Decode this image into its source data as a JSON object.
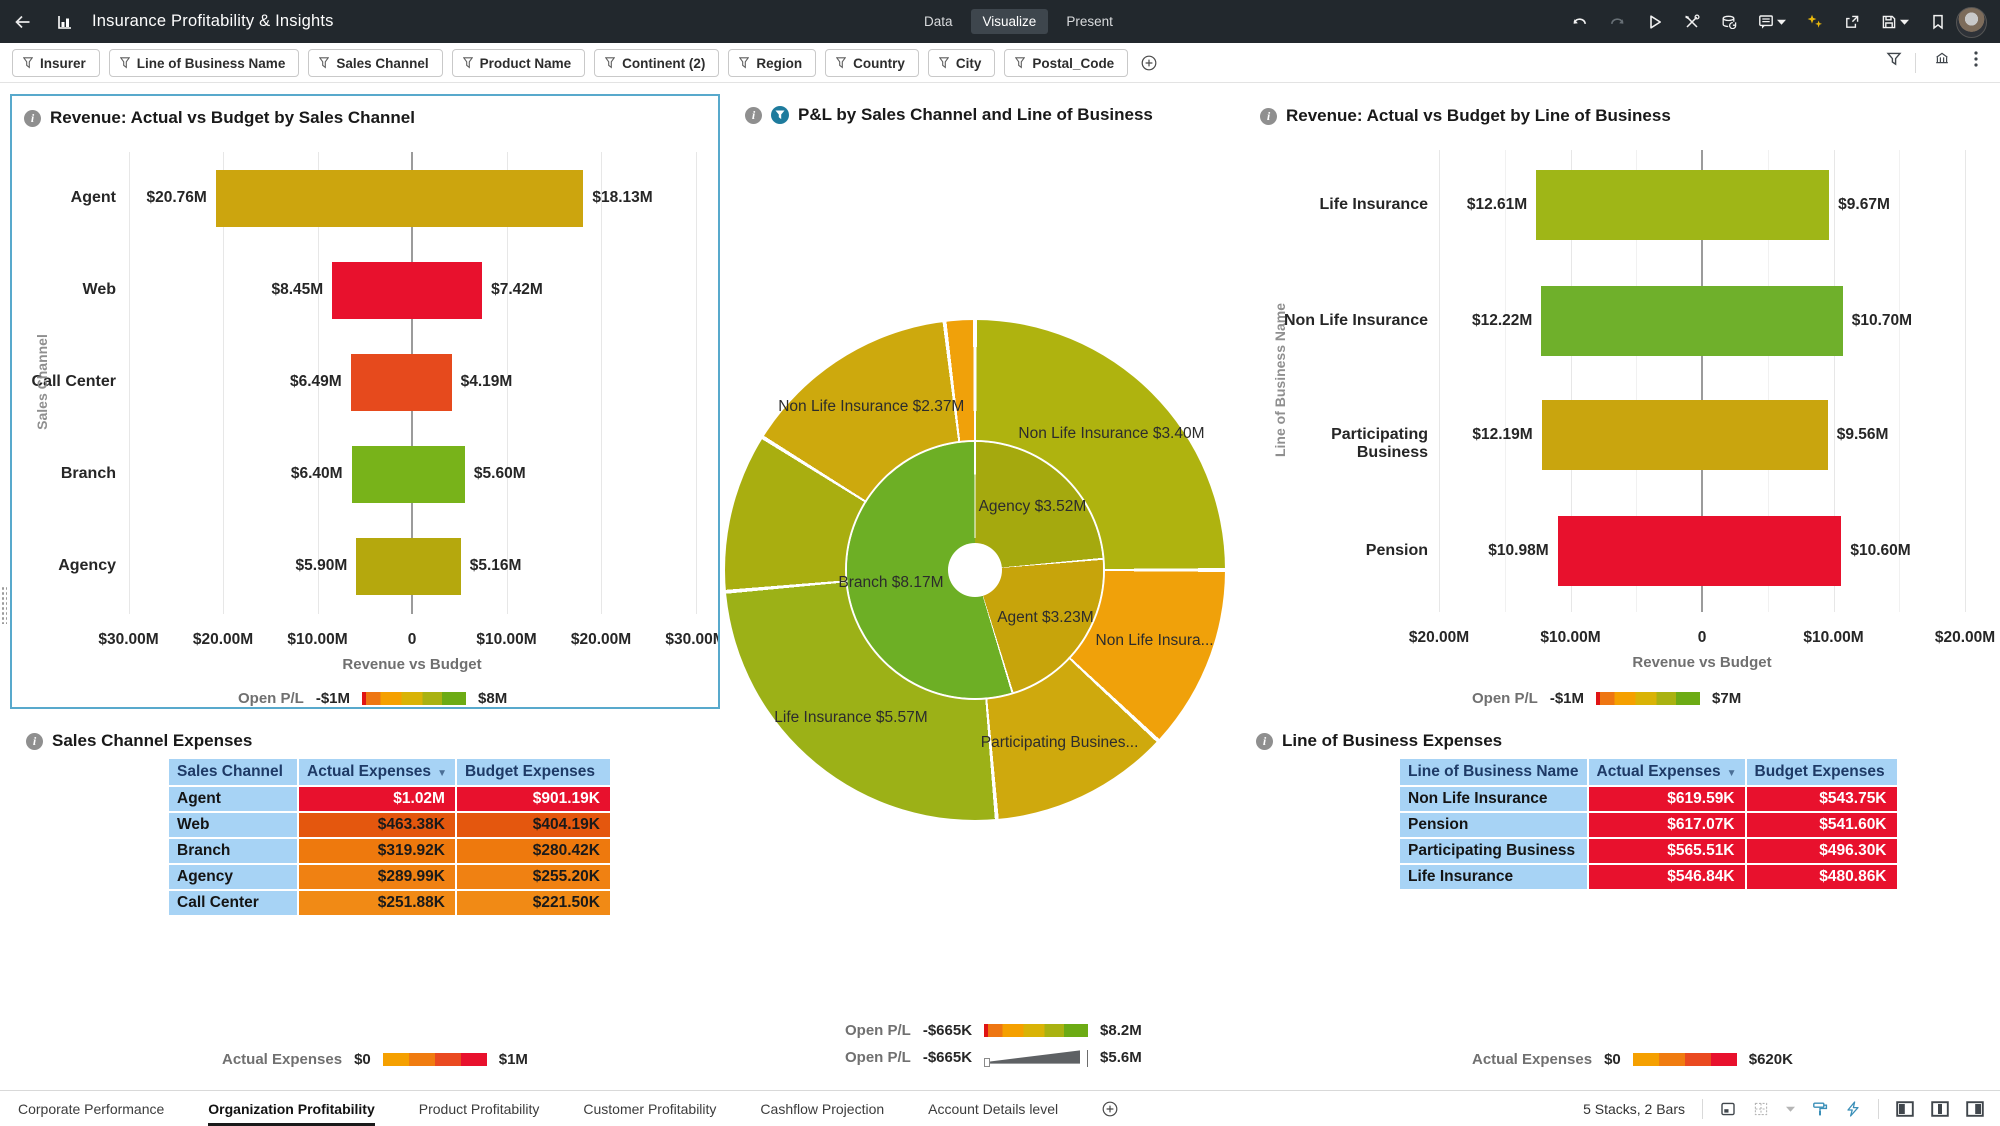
{
  "header": {
    "title": "Insurance Profitability & Insights",
    "tabs": [
      {
        "label": "Data",
        "active": false
      },
      {
        "label": "Visualize",
        "active": true
      },
      {
        "label": "Present",
        "active": false
      }
    ],
    "toolbar": [
      {
        "name": "undo-icon",
        "glyph": "undo"
      },
      {
        "name": "redo-icon",
        "glyph": "redo",
        "dim": true
      },
      {
        "name": "present-play-icon",
        "glyph": "play"
      },
      {
        "name": "tools-icon",
        "glyph": "tools"
      },
      {
        "name": "data-refresh-icon",
        "glyph": "database"
      },
      {
        "name": "notes-icon",
        "glyph": "notes",
        "caret": true
      },
      {
        "name": "auto-insights-icon",
        "glyph": "sparkle",
        "gold": true
      },
      {
        "name": "share-icon",
        "glyph": "share"
      },
      {
        "name": "save-icon",
        "glyph": "save",
        "caret": true
      },
      {
        "name": "bookmark-icon",
        "glyph": "bookmark"
      }
    ]
  },
  "filter_bar": {
    "chips": [
      "Insurer",
      "Line of Business Name",
      "Sales Channel",
      "Product Name",
      "Continent (2)",
      "Region",
      "Country",
      "City",
      "Postal_Code"
    ],
    "right_icons": [
      "filter-funnel-icon",
      "viz-settings-icon",
      "kebab-menu-icon"
    ]
  },
  "chart_data": [
    {
      "id": "revenue_by_sales_channel",
      "type": "bar",
      "subtype": "diverging-butterfly",
      "title": "Revenue: Actual vs Budget by Sales Channel",
      "ylabel": "Sales Channel",
      "xlabel": "Revenue vs Budget",
      "axis": {
        "max_millions": 30,
        "step_millions": 10,
        "tick_labels": [
          "$30.00M",
          "$20.00M",
          "$10.00M",
          "0",
          "$10.00M",
          "$20.00M",
          "$30.00M"
        ]
      },
      "series": [
        "Actual (left)",
        "Budget (right)"
      ],
      "categories": [
        {
          "label": "Agent",
          "actual_m": 20.76,
          "budget_m": 18.13,
          "actual_label": "$20.76M",
          "budget_label": "$18.13M",
          "color": "#CCA50E"
        },
        {
          "label": "Web",
          "actual_m": 8.45,
          "budget_m": 7.42,
          "actual_label": "$8.45M",
          "budget_label": "$7.42M",
          "color": "#E8112D"
        },
        {
          "label": "Call Center",
          "actual_m": 6.49,
          "budget_m": 4.19,
          "actual_label": "$6.49M",
          "budget_label": "$4.19M",
          "color": "#E64A1D"
        },
        {
          "label": "Branch",
          "actual_m": 6.4,
          "budget_m": 5.6,
          "actual_label": "$6.40M",
          "budget_label": "$5.60M",
          "color": "#78B31A"
        },
        {
          "label": "Agency",
          "actual_m": 5.9,
          "budget_m": 5.16,
          "actual_label": "$5.90M",
          "budget_label": "$5.16M",
          "color": "#B5A80D"
        }
      ],
      "legend": {
        "label": "Open P/L",
        "min": "-$1M",
        "max": "$8M",
        "type": "gradient"
      }
    },
    {
      "id": "pnl_by_sales_channel_and_lob",
      "type": "pie",
      "subtype": "sunburst",
      "title": "P&L by Sales Channel and Line of Business",
      "inner_ring": [
        {
          "label": "Agency $3.52M",
          "value_m": 3.52,
          "start_deg": 0,
          "end_deg": 85,
          "color": "#A5A90E"
        },
        {
          "label": "Agent $3.23M",
          "value_m": 3.23,
          "start_deg": 85,
          "end_deg": 163,
          "color": "#C7A40B"
        },
        {
          "label": "Branch $8.17M",
          "value_m": 8.17,
          "start_deg": 163,
          "end_deg": 360,
          "color": "#6DAF25"
        }
      ],
      "outer_ring": [
        {
          "label": "Non Life Insurance $3.40M",
          "value_m": 3.4,
          "start_deg": 0,
          "end_deg": 90,
          "color": "#AFB30F"
        },
        {
          "label": "Non Life Insura...",
          "start_deg": 90,
          "end_deg": 133,
          "color": "#F0A10A"
        },
        {
          "label": "Participating Busines...",
          "start_deg": 133,
          "end_deg": 175,
          "color": "#CFA90D"
        },
        {
          "label": "Life Insurance $5.57M",
          "value_m": 5.57,
          "start_deg": 175,
          "end_deg": 265,
          "color": "#9CB117"
        },
        {
          "label": "",
          "start_deg": 265,
          "end_deg": 302,
          "color": "#A9AE10"
        },
        {
          "label": "Non Life Insurance $2.37M",
          "value_m": 2.37,
          "start_deg": 302,
          "end_deg": 353,
          "color": "#CDA90D"
        },
        {
          "label": "",
          "start_deg": 353,
          "end_deg": 360,
          "color": "#F0A10A"
        }
      ],
      "legends": [
        {
          "label": "Open P/L",
          "min": "-$665K",
          "max": "$8.2M",
          "type": "gradient"
        },
        {
          "label": "Open P/L",
          "min": "-$665K",
          "max": "$5.6M",
          "type": "size"
        }
      ]
    },
    {
      "id": "revenue_by_line_of_business",
      "type": "bar",
      "subtype": "diverging-butterfly",
      "title": "Revenue: Actual vs Budget by Line of Business",
      "ylabel": "Line of Business Name",
      "xlabel": "Revenue vs Budget",
      "axis": {
        "max_millions": 20,
        "step_millions": 10,
        "tick_labels": [
          "$20.00M",
          "$10.00M",
          "0",
          "$10.00M",
          "$20.00M"
        ]
      },
      "series": [
        "Actual (left)",
        "Budget (right)"
      ],
      "categories": [
        {
          "label": "Life Insurance",
          "actual_m": 12.61,
          "budget_m": 9.67,
          "actual_label": "$12.61M",
          "budget_label": "$9.67M",
          "color": "#9FB617"
        },
        {
          "label": "Non Life Insurance",
          "actual_m": 12.22,
          "budget_m": 10.7,
          "actual_label": "$12.22M",
          "budget_label": "$10.70M",
          "color": "#6FB02B"
        },
        {
          "label": "Participating Business",
          "actual_m": 12.19,
          "budget_m": 9.56,
          "actual_label": "$12.19M",
          "budget_label": "$9.56M",
          "color": "#C9A50E"
        },
        {
          "label": "Pension",
          "actual_m": 10.98,
          "budget_m": 10.6,
          "actual_label": "$10.98M",
          "budget_label": "$10.60M",
          "color": "#E8112D"
        }
      ],
      "legend": {
        "label": "Open P/L",
        "min": "-$1M",
        "max": "$7M",
        "type": "gradient"
      }
    },
    {
      "id": "sales_channel_expenses",
      "type": "table",
      "title": "Sales Channel Expenses",
      "columns": [
        "Sales Channel",
        "Actual Expenses",
        "Budget Expenses"
      ],
      "sorted_column": "Actual Expenses",
      "rows": [
        {
          "label": "Agent",
          "actual": "$1.02M",
          "budget": "$901.19K",
          "color": "#E8112D",
          "text": "#FFFFFF"
        },
        {
          "label": "Web",
          "actual": "$463.38K",
          "budget": "$404.19K",
          "color": "#E4570E",
          "text": "#1A1A1A"
        },
        {
          "label": "Branch",
          "actual": "$319.92K",
          "budget": "$280.42K",
          "color": "#EE790D",
          "text": "#1A1A1A"
        },
        {
          "label": "Agency",
          "actual": "$289.99K",
          "budget": "$255.20K",
          "color": "#F08112",
          "text": "#1A1A1A"
        },
        {
          "label": "Call Center",
          "actual": "$251.88K",
          "budget": "$221.50K",
          "color": "#F18A15",
          "text": "#1A1A1A"
        }
      ],
      "legend": {
        "label": "Actual Expenses",
        "min": "$0",
        "max": "$1M",
        "type": "gradient-expense"
      }
    },
    {
      "id": "line_of_business_expenses",
      "type": "table",
      "title": "Line of Business Expenses",
      "columns": [
        "Line of Business Name",
        "Actual Expenses",
        "Budget Expenses"
      ],
      "sorted_column": "Actual Expenses",
      "rows": [
        {
          "label": "Non Life Insurance",
          "actual": "$619.59K",
          "budget": "$543.75K",
          "color": "#E8112D",
          "text": "#FFFFFF"
        },
        {
          "label": "Pension",
          "actual": "$617.07K",
          "budget": "$541.60K",
          "color": "#E8112D",
          "text": "#FFFFFF"
        },
        {
          "label": "Participating Business",
          "actual": "$565.51K",
          "budget": "$496.30K",
          "color": "#E8112D",
          "text": "#FFFFFF"
        },
        {
          "label": "Life Insurance",
          "actual": "$546.84K",
          "budget": "$480.86K",
          "color": "#E8112D",
          "text": "#FFFFFF"
        }
      ],
      "legend": {
        "label": "Actual Expenses",
        "min": "$0",
        "max": "$620K",
        "type": "gradient-expense"
      }
    }
  ],
  "bottom_bar": {
    "tabs": [
      {
        "label": "Corporate Performance",
        "active": false
      },
      {
        "label": "Organization Profitability",
        "active": true
      },
      {
        "label": "Product Profitability",
        "active": false
      },
      {
        "label": "Customer Profitability",
        "active": false
      },
      {
        "label": "Cashflow Projection",
        "active": false
      },
      {
        "label": "Account Details level",
        "active": false
      }
    ],
    "status": "5 Stacks, 2 Bars",
    "right_icons": [
      "canvas-icon",
      "grid-icon",
      "paint-roller-icon",
      "lightning-icon",
      "layout-left-icon",
      "layout-center-icon",
      "layout-right-icon"
    ]
  },
  "colors": {
    "header_bg": "#22282D",
    "selected_panel_border": "#58A9CC",
    "negative_red": "#E8112D",
    "table_header_blue": "#A7D3F5"
  }
}
